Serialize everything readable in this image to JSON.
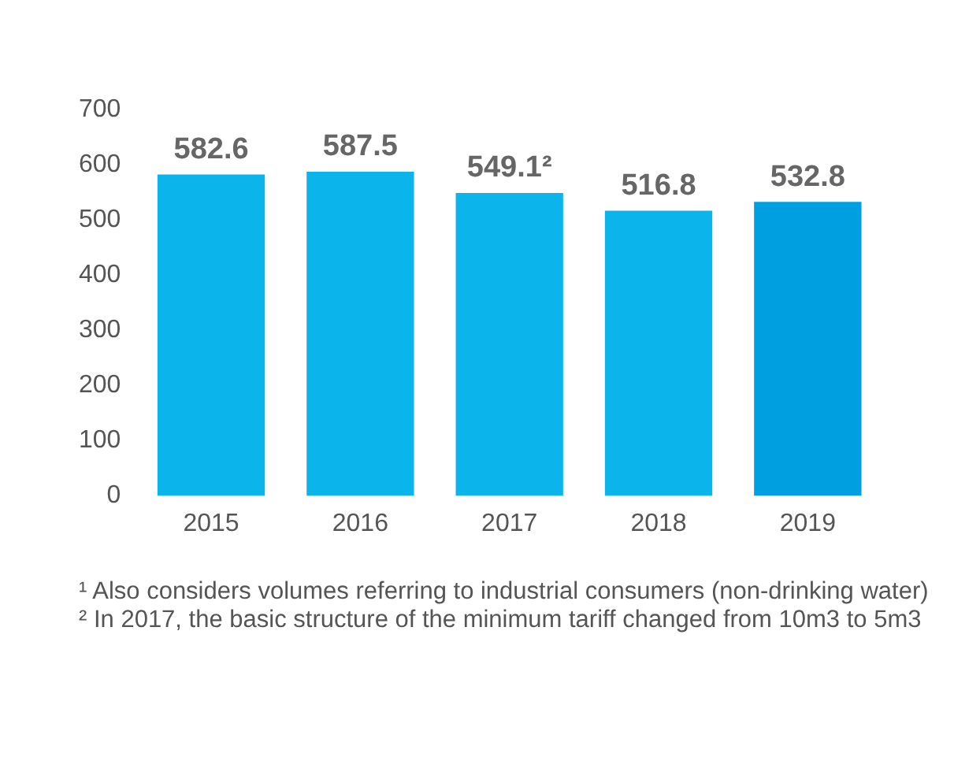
{
  "chart_data": {
    "type": "bar",
    "categories": [
      "2015",
      "2016",
      "2017",
      "2018",
      "2019"
    ],
    "values": [
      582.6,
      587.5,
      549.1,
      516.8,
      532.8
    ],
    "colors": [
      "#0bb5ec",
      "#0bb5ec",
      "#0bb5ec",
      "#0bb5ec",
      "#009fe0"
    ],
    "value_labels": [
      "582.6",
      "587.5",
      "549.1²",
      "516.8",
      "532.8"
    ],
    "ylim": [
      0,
      700
    ],
    "yticks": [
      0,
      100,
      200,
      300,
      400,
      500,
      600,
      700
    ],
    "grid": false,
    "legend": false,
    "annotations": [
      "¹ Also considers volumes referring to industrial consumers (non-drinking water)",
      "² In 2017, the basic structure of the minimum tariff changed from 10m3 to 5m3"
    ]
  }
}
